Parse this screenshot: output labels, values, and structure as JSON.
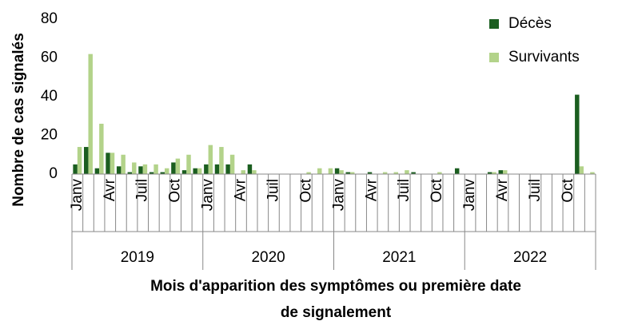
{
  "chart_data": {
    "type": "bar",
    "y_label": "Nombre de cas signalés",
    "x_label": [
      "Mois d'apparition des symptômes ou première date",
      "de signalement"
    ],
    "categories": [
      "Janv",
      null,
      null,
      "Avr",
      null,
      null,
      "Juil",
      null,
      null,
      "Oct",
      null,
      null,
      "Janv",
      null,
      null,
      "Avr",
      null,
      null,
      "Juil",
      null,
      null,
      "Oct",
      null,
      null,
      "Janv",
      null,
      null,
      "Avr",
      null,
      null,
      "Juil",
      null,
      null,
      "Oct",
      null,
      null,
      "Janv",
      null,
      null,
      "Avr",
      null,
      null,
      "Juil",
      null,
      null,
      "Oct",
      null,
      null
    ],
    "groups": [
      "2019",
      "2020",
      "2021",
      "2022"
    ],
    "series": [
      {
        "name": "Décès",
        "color": "#1b5e20",
        "values": [
          5,
          14,
          3,
          11,
          4,
          1,
          4,
          1,
          1,
          6,
          2,
          3,
          5,
          5,
          5,
          0,
          5,
          0,
          0,
          0,
          0,
          0,
          0,
          0,
          3,
          1,
          0,
          1,
          0,
          0,
          0,
          1,
          0,
          0,
          0,
          3,
          0,
          0,
          1,
          2,
          0,
          0,
          0,
          0,
          0,
          0,
          41,
          0
        ]
      },
      {
        "name": "Survivants",
        "color": "#b3d38a",
        "values": [
          14,
          62,
          26,
          11,
          10,
          6,
          5,
          5,
          3,
          8,
          10,
          3,
          15,
          14,
          10,
          2,
          2,
          0,
          0,
          0,
          0,
          1,
          3,
          3,
          2,
          1,
          0,
          0,
          1,
          1,
          2,
          0,
          0,
          1,
          0,
          0,
          0,
          0,
          1,
          2,
          0,
          0,
          0,
          0,
          0,
          0,
          4,
          1
        ]
      }
    ],
    "ylim": [
      0,
      80
    ],
    "yticks": [
      0,
      20,
      40,
      60,
      80
    ],
    "grid": false,
    "legend": "upper right"
  }
}
